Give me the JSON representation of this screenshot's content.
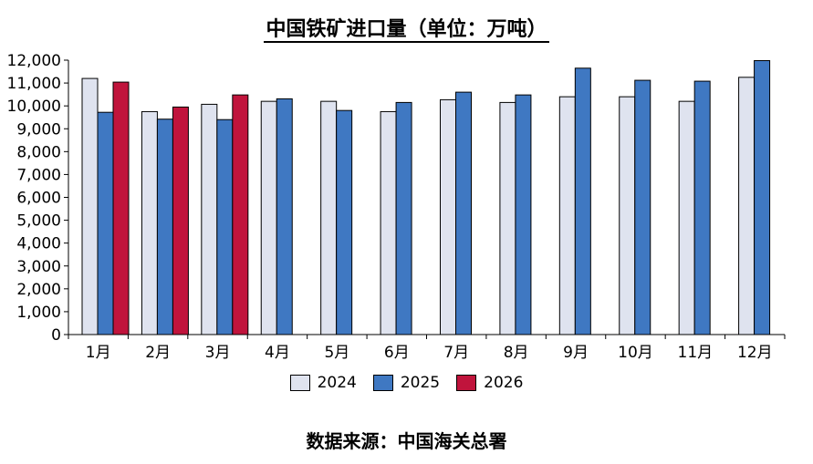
{
  "chart_data": {
    "type": "bar",
    "title": "中国铁矿进口量（单位：万吨）",
    "categories": [
      "1月",
      "2月",
      "3月",
      "4月",
      "5月",
      "6月",
      "7月",
      "8月",
      "9月",
      "10月",
      "11月",
      "12月"
    ],
    "series": [
      {
        "name": "2024",
        "color": "#dfe3ef",
        "values": [
          11200,
          9750,
          10070,
          10200,
          10200,
          9750,
          10270,
          10150,
          10400,
          10400,
          10200,
          11250
        ]
      },
      {
        "name": "2025",
        "color": "#3f78c2",
        "values": [
          9720,
          9420,
          9400,
          10310,
          9800,
          10150,
          10600,
          10480,
          11650,
          11120,
          11080,
          11980
        ]
      },
      {
        "name": "2026",
        "color": "#c0143c",
        "values": [
          11040,
          9950,
          10480,
          null,
          null,
          null,
          null,
          null,
          null,
          null,
          null,
          null
        ]
      }
    ],
    "yticks": [
      "0",
      "1,000",
      "2,000",
      "3,000",
      "4,000",
      "5,000",
      "6,000",
      "7,000",
      "8,000",
      "9,000",
      "10,000",
      "11,000",
      "12,000"
    ],
    "ylim": [
      0,
      12000
    ],
    "legend_position": "bottom",
    "grid": false,
    "source": "数据来源：中国海关总署"
  }
}
